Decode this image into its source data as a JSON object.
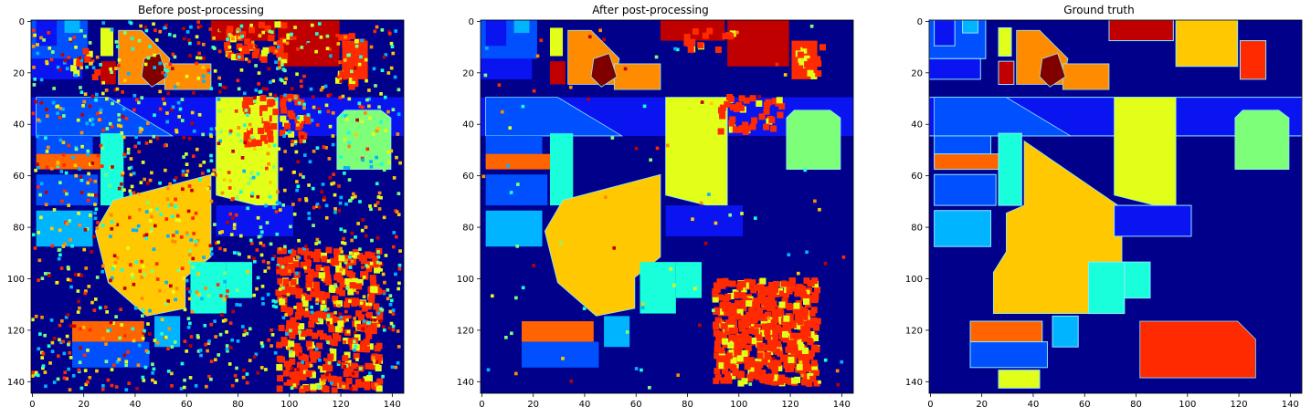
{
  "figure": {
    "panels": [
      {
        "id": "before",
        "title": "Before post-processing"
      },
      {
        "id": "after",
        "title": "After post-processing"
      },
      {
        "id": "gt",
        "title": "Ground truth"
      }
    ],
    "x_ticks": [
      "0",
      "20",
      "40",
      "60",
      "80",
      "100",
      "120",
      "140"
    ],
    "y_ticks": [
      "0",
      "20",
      "40",
      "60",
      "80",
      "100",
      "120",
      "140"
    ],
    "x_range": [
      0,
      145
    ],
    "y_range": [
      0,
      145
    ],
    "colormap": "jet",
    "colors": {
      "background": "#00008b",
      "blue": "#0a14f0",
      "medium_blue": "#0050ff",
      "light_blue": "#00b4ff",
      "cyan_green": "#19ffdc",
      "green": "#7dff7a",
      "yellow": "#e2ff19",
      "gold": "#ffc800",
      "orange": "#ff8c00",
      "dark_orange": "#ff6400",
      "red": "#ff2a00",
      "dark_red": "#c00000",
      "maroon": "#800000"
    }
  }
}
